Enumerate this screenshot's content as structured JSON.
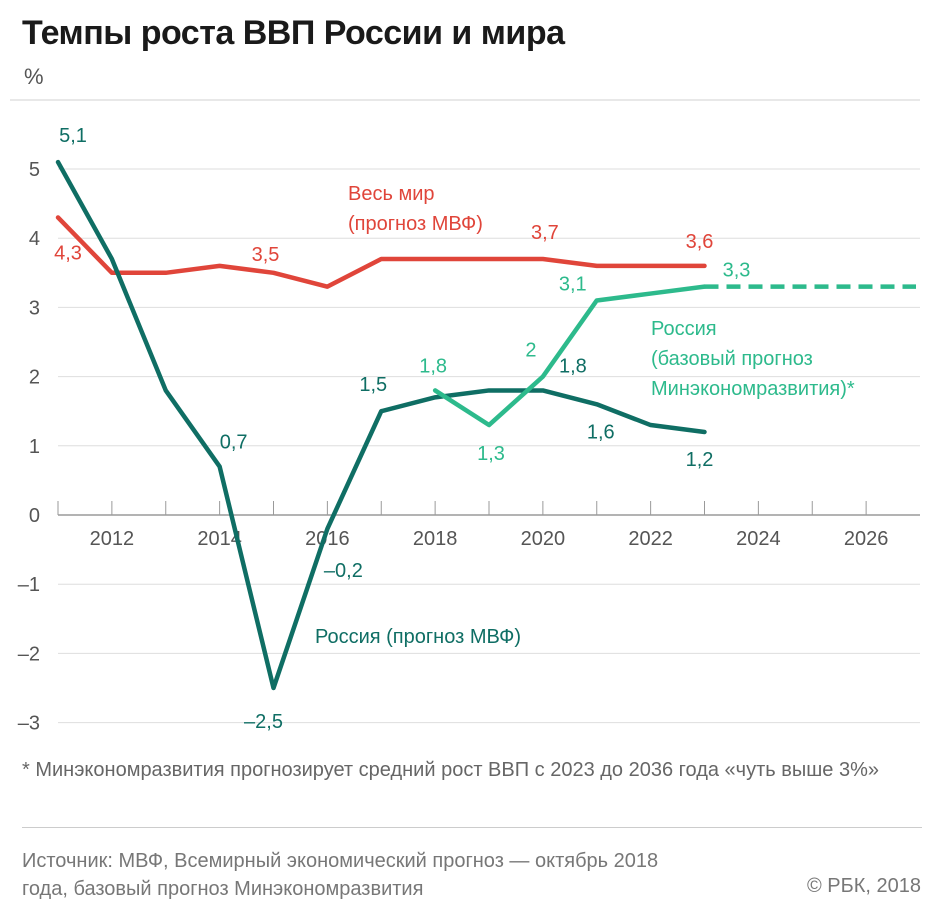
{
  "chart_data": {
    "type": "line",
    "title": "Темпы роста ВВП России и мира",
    "ylabel": "%",
    "xlabel": "",
    "xlim": [
      2011,
      2027
    ],
    "ylim": [
      -3,
      5
    ],
    "y_ticks": [
      5,
      4,
      3,
      2,
      1,
      0,
      -1,
      -2,
      -3
    ],
    "y_tick_labels": [
      "5",
      "4",
      "3",
      "2",
      "1",
      "0",
      "–1",
      "–2",
      "–3"
    ],
    "x_ticks": [
      2012,
      2014,
      2016,
      2018,
      2020,
      2022,
      2024,
      2026
    ],
    "x_tick_labels": [
      "2012",
      "2014",
      "2016",
      "2018",
      "2020",
      "2022",
      "2024",
      "2026"
    ],
    "grid": true,
    "series": [
      {
        "name": "Весь мир (прогноз МВФ)",
        "label_lines": [
          "Весь мир",
          "(прогноз МВФ)"
        ],
        "color": "#e0453a",
        "x": [
          2011,
          2012,
          2013,
          2014,
          2015,
          2016,
          2017,
          2018,
          2019,
          2020,
          2021,
          2022,
          2023
        ],
        "values": [
          4.3,
          3.5,
          3.5,
          3.6,
          3.5,
          3.3,
          3.7,
          3.7,
          3.7,
          3.7,
          3.6,
          3.6,
          3.6
        ],
        "data_labels": [
          {
            "x": 2011,
            "text": "4,3"
          },
          {
            "x": 2015,
            "text": "3,5"
          },
          {
            "x": 2020,
            "text": "3,7"
          },
          {
            "x": 2023,
            "text": "3,6"
          }
        ]
      },
      {
        "name": "Россия (прогноз МВФ)",
        "label_lines": [
          "Россия (прогноз МВФ)"
        ],
        "color": "#0f6e64",
        "x": [
          2011,
          2012,
          2013,
          2014,
          2015,
          2016,
          2017,
          2018,
          2019,
          2020,
          2021,
          2022,
          2023
        ],
        "values": [
          5.1,
          3.7,
          1.8,
          0.7,
          -2.5,
          -0.2,
          1.5,
          1.7,
          1.8,
          1.8,
          1.6,
          1.3,
          1.2
        ],
        "data_labels": [
          {
            "x": 2011,
            "text": "5,1"
          },
          {
            "x": 2014,
            "text": "0,7"
          },
          {
            "x": 2015,
            "text": "–2,5"
          },
          {
            "x": 2016,
            "text": "–0,2"
          },
          {
            "x": 2017,
            "text": "1,5"
          },
          {
            "x": 2020,
            "text": "1,8"
          },
          {
            "x": 2021,
            "text": "1,6"
          },
          {
            "x": 2023,
            "text": "1,2"
          }
        ]
      },
      {
        "name": "Россия (базовый прогноз Минэкономразвития)*",
        "label_lines": [
          "Россия",
          "(базовый прогноз",
          "Минэкономразвития)*"
        ],
        "color": "#2dba8c",
        "x": [
          2018,
          2019,
          2020,
          2021,
          2022,
          2023
        ],
        "values": [
          1.8,
          1.3,
          2.0,
          3.1,
          3.2,
          3.3
        ],
        "dashed_extension": {
          "x": [
            2023,
            2027
          ],
          "values": [
            3.3,
            3.3
          ]
        },
        "data_labels": [
          {
            "x": 2018,
            "text": "1,8"
          },
          {
            "x": 2019,
            "text": "1,3"
          },
          {
            "x": 2020,
            "text": "2"
          },
          {
            "x": 2021,
            "text": "3,1"
          },
          {
            "x": 2023,
            "text": "3,3"
          }
        ]
      }
    ]
  },
  "footnote": "* Минэкономразвития прогнозирует средний рост ВВП с 2023 до 2036 года «чуть выше 3%»",
  "source": "Источник: МВФ, Всемирный экономический прогноз — октябрь 2018 года, базовый прогноз Минэкономразвития",
  "copyright": "© РБК, 2018"
}
